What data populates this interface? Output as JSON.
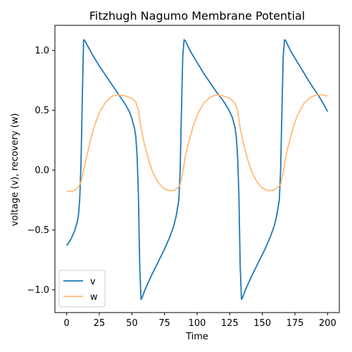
{
  "chart_data": {
    "type": "line",
    "title": "Fitzhugh Nagumo Membrane Potential",
    "xlabel": "Time",
    "ylabel": "voltage (v), recovery (w)",
    "xlim": [
      -9,
      209
    ],
    "ylim": [
      -1.19,
      1.21
    ],
    "xticks": [
      0,
      25,
      50,
      75,
      100,
      125,
      150,
      175,
      200
    ],
    "yticks": [
      -1.0,
      -0.5,
      0.0,
      0.5,
      1.0
    ],
    "ytick_labels": [
      "−1.0",
      "−0.5",
      "0.0",
      "0.5",
      "1.0"
    ],
    "grid": false,
    "legend_position": "lower-left",
    "series": [
      {
        "name": "v",
        "color": "#1f77b4",
        "points": [
          [
            0,
            -0.63
          ],
          [
            2,
            -0.6
          ],
          [
            4,
            -0.56
          ],
          [
            6,
            -0.51
          ],
          [
            8,
            -0.44
          ],
          [
            9,
            -0.38
          ],
          [
            10,
            -0.25
          ],
          [
            11,
            0.05
          ],
          [
            12,
            0.6
          ],
          [
            13,
            1.09
          ],
          [
            14,
            1.08
          ],
          [
            16,
            1.04
          ],
          [
            20,
            0.96
          ],
          [
            25,
            0.87
          ],
          [
            30,
            0.79
          ],
          [
            35,
            0.71
          ],
          [
            40,
            0.63
          ],
          [
            45,
            0.55
          ],
          [
            48,
            0.49
          ],
          [
            50,
            0.43
          ],
          [
            52,
            0.35
          ],
          [
            53,
            0.28
          ],
          [
            54,
            0.12
          ],
          [
            55,
            -0.2
          ],
          [
            56,
            -0.8
          ],
          [
            57,
            -1.08
          ],
          [
            58,
            -1.06
          ],
          [
            60,
            -1.0
          ],
          [
            65,
            -0.88
          ],
          [
            70,
            -0.77
          ],
          [
            75,
            -0.66
          ],
          [
            79,
            -0.56
          ],
          [
            82,
            -0.47
          ],
          [
            84,
            -0.38
          ],
          [
            86,
            -0.25
          ],
          [
            87,
            0.0
          ],
          [
            88,
            0.5
          ],
          [
            89,
            0.95
          ],
          [
            90,
            1.09
          ],
          [
            91,
            1.08
          ],
          [
            95,
            0.99
          ],
          [
            100,
            0.9
          ],
          [
            105,
            0.81
          ],
          [
            110,
            0.73
          ],
          [
            115,
            0.65
          ],
          [
            120,
            0.58
          ],
          [
            124,
            0.51
          ],
          [
            127,
            0.44
          ],
          [
            129,
            0.36
          ],
          [
            130,
            0.28
          ],
          [
            131,
            0.12
          ],
          [
            132,
            -0.2
          ],
          [
            133,
            -0.8
          ],
          [
            134,
            -1.08
          ],
          [
            135,
            -1.06
          ],
          [
            137,
            -1.0
          ],
          [
            142,
            -0.88
          ],
          [
            147,
            -0.77
          ],
          [
            152,
            -0.66
          ],
          [
            156,
            -0.56
          ],
          [
            159,
            -0.47
          ],
          [
            161,
            -0.38
          ],
          [
            163,
            -0.25
          ],
          [
            164,
            0.0
          ],
          [
            165,
            0.5
          ],
          [
            166,
            0.95
          ],
          [
            167,
            1.09
          ],
          [
            168,
            1.08
          ],
          [
            172,
            0.99
          ],
          [
            177,
            0.9
          ],
          [
            182,
            0.81
          ],
          [
            187,
            0.72
          ],
          [
            192,
            0.64
          ],
          [
            196,
            0.57
          ],
          [
            200,
            0.49
          ]
        ]
      },
      {
        "name": "w",
        "color": "#ffbb78",
        "points": [
          [
            0,
            -0.17
          ],
          [
            3,
            -0.18
          ],
          [
            6,
            -0.17
          ],
          [
            9,
            -0.14
          ],
          [
            11,
            -0.1
          ],
          [
            13,
            0.0
          ],
          [
            15,
            0.1
          ],
          [
            18,
            0.24
          ],
          [
            21,
            0.36
          ],
          [
            25,
            0.48
          ],
          [
            30,
            0.57
          ],
          [
            35,
            0.62
          ],
          [
            40,
            0.63
          ],
          [
            45,
            0.62
          ],
          [
            50,
            0.6
          ],
          [
            53,
            0.57
          ],
          [
            55,
            0.5
          ],
          [
            57,
            0.35
          ],
          [
            60,
            0.2
          ],
          [
            63,
            0.08
          ],
          [
            66,
            -0.02
          ],
          [
            70,
            -0.1
          ],
          [
            74,
            -0.15
          ],
          [
            78,
            -0.17
          ],
          [
            82,
            -0.17
          ],
          [
            85,
            -0.15
          ],
          [
            87,
            -0.12
          ],
          [
            89,
            -0.02
          ],
          [
            91,
            0.12
          ],
          [
            94,
            0.25
          ],
          [
            97,
            0.37
          ],
          [
            100,
            0.46
          ],
          [
            105,
            0.56
          ],
          [
            110,
            0.61
          ],
          [
            115,
            0.63
          ],
          [
            120,
            0.62
          ],
          [
            125,
            0.6
          ],
          [
            129,
            0.56
          ],
          [
            131,
            0.5
          ],
          [
            133,
            0.35
          ],
          [
            136,
            0.2
          ],
          [
            139,
            0.08
          ],
          [
            142,
            -0.02
          ],
          [
            146,
            -0.1
          ],
          [
            150,
            -0.15
          ],
          [
            154,
            -0.17
          ],
          [
            158,
            -0.17
          ],
          [
            161,
            -0.15
          ],
          [
            164,
            -0.12
          ],
          [
            166,
            -0.02
          ],
          [
            168,
            0.12
          ],
          [
            171,
            0.25
          ],
          [
            174,
            0.37
          ],
          [
            177,
            0.46
          ],
          [
            182,
            0.56
          ],
          [
            187,
            0.61
          ],
          [
            192,
            0.63
          ],
          [
            196,
            0.63
          ],
          [
            200,
            0.62
          ]
        ]
      }
    ]
  }
}
